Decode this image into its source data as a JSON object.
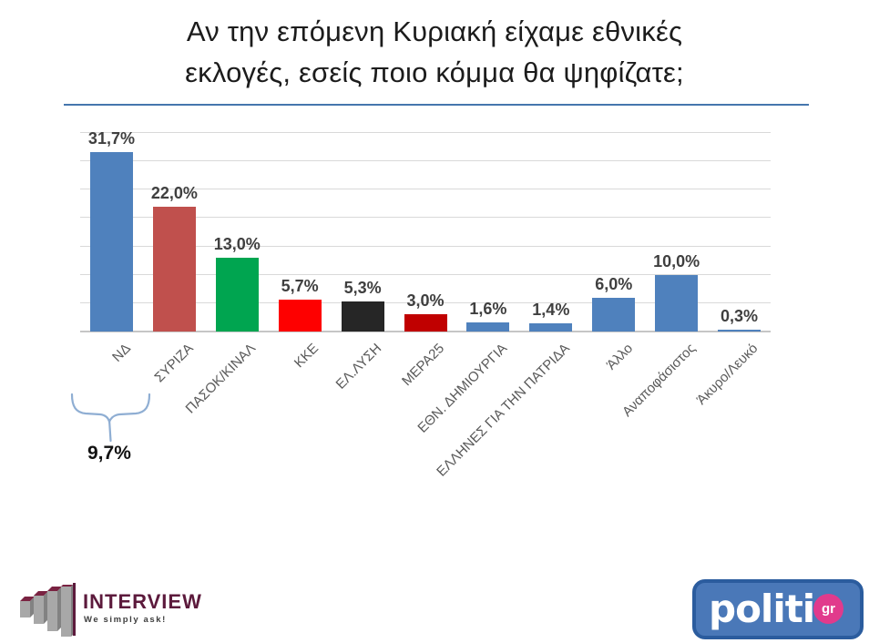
{
  "title": {
    "line1": "Αν την επόμενη Κυριακή είχαμε εθνικές",
    "line2": "εκλογές, εσείς ποιο κόμμα θα ψηφίζατε;"
  },
  "chart_data": {
    "type": "bar",
    "categories": [
      "ΝΔ",
      "ΣΥΡΙΖΑ",
      "ΠΑΣΟΚ/ΚΙΝΑΛ",
      "ΚΚΕ",
      "ΕΛ.ΛΥΣΗ",
      "ΜΕΡΑ25",
      "ΕΘΝ. ΔΗΜΙΟΥΡΓΙΑ",
      "ΕΛΛΗΝΕΣ ΓΙΑ ΤΗΝ ΠΑΤΡΙΔΑ",
      "Άλλο",
      "Αναποφάσιστος",
      "Άκυρο/Λευκό"
    ],
    "values": [
      31.7,
      22.0,
      13.0,
      5.7,
      5.3,
      3.0,
      1.6,
      1.4,
      6.0,
      10.0,
      0.3
    ],
    "data_labels": [
      "31,7%",
      "22,0%",
      "13,0%",
      "5,7%",
      "5,3%",
      "3,0%",
      "1,6%",
      "1,4%",
      "6,0%",
      "10,0%",
      "0,3%"
    ],
    "bar_colors": [
      "#4f81bd",
      "#c0504d",
      "#00a550",
      "#fe0000",
      "#262626",
      "#c00000",
      "#4f81bd",
      "#4f81bd",
      "#4f81bd",
      "#4f81bd",
      "#4f81bd"
    ],
    "ylim": [
      0,
      35
    ],
    "gridline_step": 5,
    "grid": true,
    "legend": "none",
    "xlabel": "",
    "ylabel": "",
    "annotation": {
      "text": "9,7%",
      "from_category": "ΝΔ",
      "to_category": "ΣΥΡΙΖΑ"
    }
  },
  "footer": {
    "interview": {
      "brand": "INTERVIEW",
      "tagline": "We simply ask!"
    },
    "politic": {
      "brand": "politic",
      "suffix": "gr"
    }
  },
  "theme": {
    "title_underline": "#4576ad",
    "grid_color": "#d9d9d9",
    "value_label_color": "#3f3f3f",
    "tick_label_color": "#595959",
    "brace_color": "#8faed3",
    "interview_maroon": "#5c1a3c",
    "interview_gray_front": "#a8a8a8",
    "interview_gray_side": "#828282",
    "politic_blue": "#4a78b8",
    "politic_border": "#2b5c9e",
    "politic_pink": "#e13a8c"
  }
}
